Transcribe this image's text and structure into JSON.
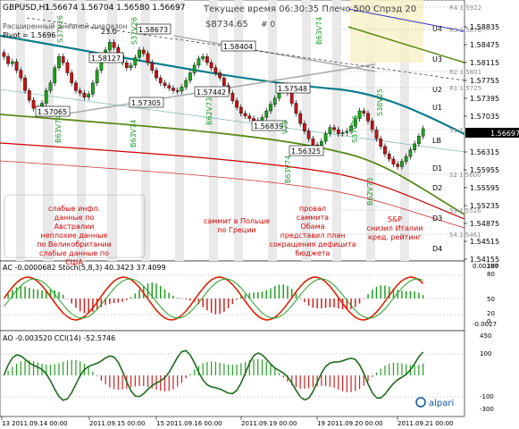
{
  "header": {
    "symbol": "GBPUSD,H1",
    "ohlc": "1.56674 1.56704 1.56580 1.56697",
    "server_time": "Текущее время 06:30:35 Плечо 500 Спрэд 20",
    "balance": "$8734.65",
    "ticket": "# 0",
    "pivot_label": "Pivot = 1.5696",
    "daily_label": "Расширенный дневной диапазон"
  },
  "main_chart": {
    "price_ticks": [
      "1.58835",
      "1.58475",
      "1.58115",
      "1.57755",
      "1.57395",
      "1.57035",
      "1.56697",
      "1.56315",
      "1.55955",
      "1.55595",
      "1.55235",
      "1.54875",
      "1.54515",
      "1.54155"
    ],
    "current_price": "1.56697",
    "levels": [
      {
        "name": "R4",
        "value": "1.5922"
      },
      {
        "name": "U4",
        "value": ""
      },
      {
        "name": "R3",
        "value": "1.5876"
      },
      {
        "name": "U3",
        "value": ""
      },
      {
        "name": "R2",
        "value": "1.5801"
      },
      {
        "name": "U2",
        "value": ""
      },
      {
        "name": "R1",
        "value": "1.5725"
      },
      {
        "name": "U1",
        "value": ""
      },
      {
        "name": "LB",
        "value": ""
      },
      {
        "name": "S1",
        "value": "1.5650"
      },
      {
        "name": "D1",
        "value": ""
      },
      {
        "name": "S2",
        "value": "1.5600"
      },
      {
        "name": "D2",
        "value": ""
      },
      {
        "name": "D3",
        "value": ""
      },
      {
        "name": "S3",
        "value": "1.5526"
      },
      {
        "name": "S4",
        "value": "1.5461"
      },
      {
        "name": "D4",
        "value": ""
      }
    ],
    "price_labels": [
      "1.58673",
      "1.58127",
      "1.58404",
      "1.57065",
      "1.57305",
      "1.57442",
      "1.57548",
      "1.56839",
      "1.56325"
    ],
    "vertical_labels": [
      "B63V74",
      "B63V74",
      "B62V73",
      "B63V74",
      "S37V26",
      "S37V26",
      "B63V74",
      "S38V25",
      "B62V73",
      "S37V26",
      "V75"
    ],
    "top_label": "23.0",
    "annotations": [
      {
        "id": "a1",
        "lines": [
          "слабые инфл.",
          "данные по",
          "Австралии",
          "неплохие данные",
          "по Великобритании",
          "слабые данные по",
          "США"
        ]
      },
      {
        "id": "a2",
        "lines": [
          "саммит в Польше",
          "по Греции"
        ]
      },
      {
        "id": "a3",
        "lines": [
          "провал",
          "саммита",
          "Обама",
          "представил план",
          "сокращения дефицита",
          "бюджета"
        ]
      },
      {
        "id": "a4",
        "lines": [
          "S&P",
          "снизил Италии",
          "кред. рейтинг"
        ]
      }
    ]
  },
  "ac_panel": {
    "title": "AC -0.0000682  Stoch(5,8,3) 40.3423 37.4099",
    "ticks": [
      "0.00287",
      "100",
      "80",
      "50",
      "20",
      "0",
      "-0.0027"
    ]
  },
  "ao_panel": {
    "title": "AO -0.003520  CCI(14) -52.5746",
    "ticks": [
      "450",
      "100",
      "-100",
      "-300"
    ]
  },
  "time_axis": [
    "13 2011.09.14 00:00",
    "2011.09.15 00:00",
    "15 2011.09.16 00:00",
    "2011.09.19 00:00",
    "19 2011.09.20 00:00",
    "2011.09.21 00:00"
  ],
  "brand": "alpari",
  "chart_data": {
    "type": "candlestick",
    "symbol": "GBPUSD",
    "timeframe": "H1",
    "ylim": [
      1.5416,
      1.5906
    ],
    "x": [
      "2011.09.14",
      "2011.09.15",
      "2011.09.16",
      "2011.09.19",
      "2011.09.20",
      "2011.09.21"
    ],
    "close_series": [
      1.5812,
      1.5798,
      1.5802,
      1.5785,
      1.577,
      1.5745,
      1.5726,
      1.571,
      1.5708,
      1.572,
      1.5745,
      1.576,
      1.579,
      1.5812,
      1.58,
      1.578,
      1.576,
      1.5745,
      1.574,
      1.5732,
      1.5738,
      1.576,
      1.5785,
      1.581,
      1.5825,
      1.584,
      1.583,
      1.5815,
      1.58,
      1.579,
      1.5795,
      1.581,
      1.5825,
      1.5818,
      1.58,
      1.5785,
      1.577,
      1.576,
      1.5755,
      1.575,
      1.5745,
      1.5744,
      1.5752,
      1.5765,
      1.578,
      1.5795,
      1.5808,
      1.5812,
      1.58,
      1.579,
      1.578,
      1.577,
      1.5755,
      1.574,
      1.5725,
      1.5712,
      1.57,
      1.5695,
      1.569,
      1.5686,
      1.5684,
      1.5692,
      1.5705,
      1.5718,
      1.573,
      1.5745,
      1.5755,
      1.574,
      1.572,
      1.57,
      1.568,
      1.5665,
      1.565,
      1.5638,
      1.5635,
      1.5645,
      1.566,
      1.5672,
      1.5668,
      1.566,
      1.5662,
      1.5665,
      1.5675,
      1.569,
      1.5705,
      1.57,
      1.5685,
      1.5668,
      1.565,
      1.5635,
      1.562,
      1.561,
      1.56,
      1.5595,
      1.5605,
      1.5615,
      1.5628,
      1.564,
      1.5655,
      1.567
    ],
    "stochastic": [
      40.34,
      37.41
    ],
    "ac": -6.82e-05,
    "ao": -0.00352,
    "cci": -52.5746
  }
}
